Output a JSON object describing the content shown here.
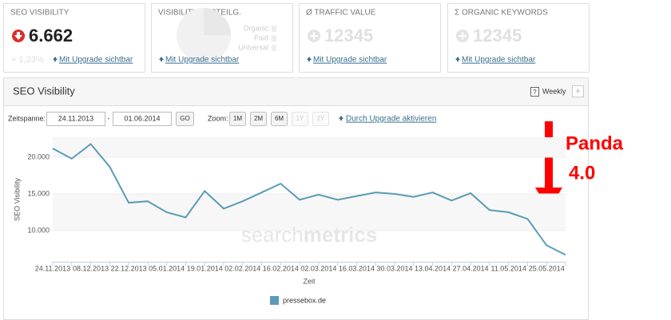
{
  "cards": [
    {
      "title": "SEO VISIBILITY",
      "value": "6.662",
      "change": "+ 1,23%",
      "link": "Mit Upgrade sichtbar"
    },
    {
      "title": "VISIBILITY-VERTEILG.",
      "legend": [
        "Organic",
        "Paid",
        "Universal"
      ],
      "link": "Mit Upgrade sichtbar"
    },
    {
      "title": "Ø TRAFFIC VALUE",
      "value": "12345",
      "link": "Mit Upgrade sichtbar"
    },
    {
      "title": "Σ ORGANIC KEYWORDS",
      "value": "12345",
      "link": "Mit Upgrade sichtbar"
    }
  ],
  "panel": {
    "title": "SEO Visibility",
    "interval": "Weekly",
    "controls": {
      "range_label": "Zeitspanne:",
      "from": "24.11.2013",
      "separator": "-",
      "to": "01.06.2014",
      "go": "GO",
      "zoom_label": "Zoom:",
      "zoom": [
        "1M",
        "2M",
        "6M",
        "1Y",
        "2Y"
      ],
      "upgrade": "Durch Upgrade aktivieren"
    }
  },
  "chart_data": {
    "type": "line",
    "x_label": "Zeit",
    "y_label": "SEO Visibility",
    "watermark": [
      "search",
      "metrics"
    ],
    "categories": [
      "24.11.2013",
      null,
      "08.12.2013",
      null,
      "22.12.2013",
      null,
      "05.01.2014",
      null,
      "19.01.2014",
      null,
      "02.02.2014",
      null,
      "16.02.2014",
      null,
      "02.03.2014",
      null,
      "16.03.2014",
      null,
      "30.03.2014",
      null,
      "13.04.2014",
      null,
      "27.04.2014",
      null,
      "11.05.2014",
      null,
      "25.05.2014",
      null
    ],
    "series": [
      {
        "name": "pressebox.de",
        "color": "#5b9bb5",
        "values": [
          21200,
          19800,
          21800,
          18700,
          13800,
          14000,
          12500,
          11800,
          15400,
          13000,
          14000,
          15200,
          16400,
          14200,
          14900,
          14200,
          14700,
          15200,
          15000,
          14600,
          15200,
          14100,
          15100,
          12800,
          12500,
          11600,
          8000,
          6700
        ]
      }
    ],
    "ylim": [
      5760,
      22720
    ],
    "yticks": [
      {
        "value": 10000,
        "label": "10.000"
      },
      {
        "value": 15000,
        "label": "15.000"
      },
      {
        "value": 20000,
        "label": "20.000"
      }
    ],
    "grid": true,
    "annotation": {
      "lines": [
        "Panda",
        "4.0"
      ],
      "color": "#ff0000"
    }
  }
}
